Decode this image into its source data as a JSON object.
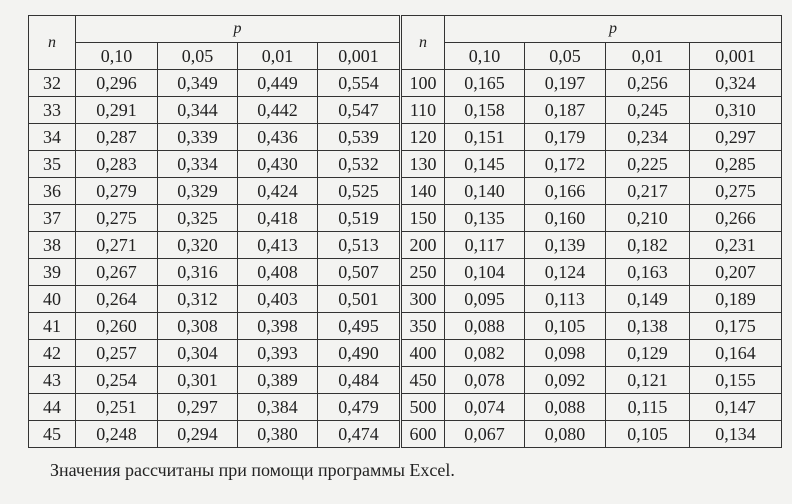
{
  "blocks": [
    {
      "n_label": "n",
      "p_label": "p",
      "p_values": [
        "0,10",
        "0,05",
        "0,01",
        "0,001"
      ],
      "rows": [
        [
          "32",
          "0,296",
          "0,349",
          "0,449",
          "0,554"
        ],
        [
          "33",
          "0,291",
          "0,344",
          "0,442",
          "0,547"
        ],
        [
          "34",
          "0,287",
          "0,339",
          "0,436",
          "0,539"
        ],
        [
          "35",
          "0,283",
          "0,334",
          "0,430",
          "0,532"
        ],
        [
          "36",
          "0,279",
          "0,329",
          "0,424",
          "0,525"
        ],
        [
          "37",
          "0,275",
          "0,325",
          "0,418",
          "0,519"
        ],
        [
          "38",
          "0,271",
          "0,320",
          "0,413",
          "0,513"
        ],
        [
          "39",
          "0,267",
          "0,316",
          "0,408",
          "0,507"
        ],
        [
          "40",
          "0,264",
          "0,312",
          "0,403",
          "0,501"
        ],
        [
          "41",
          "0,260",
          "0,308",
          "0,398",
          "0,495"
        ],
        [
          "42",
          "0,257",
          "0,304",
          "0,393",
          "0,490"
        ],
        [
          "43",
          "0,254",
          "0,301",
          "0,389",
          "0,484"
        ],
        [
          "44",
          "0,251",
          "0,297",
          "0,384",
          "0,479"
        ],
        [
          "45",
          "0,248",
          "0,294",
          "0,380",
          "0,474"
        ]
      ]
    },
    {
      "n_label": "n",
      "p_label": "p",
      "p_values": [
        "0,10",
        "0,05",
        "0,01",
        "0,001"
      ],
      "rows": [
        [
          "100",
          "0,165",
          "0,197",
          "0,256",
          "0,324"
        ],
        [
          "110",
          "0,158",
          "0,187",
          "0,245",
          "0,310"
        ],
        [
          "120",
          "0,151",
          "0,179",
          "0,234",
          "0,297"
        ],
        [
          "130",
          "0,145",
          "0,172",
          "0,225",
          "0,285"
        ],
        [
          "140",
          "0,140",
          "0,166",
          "0,217",
          "0,275"
        ],
        [
          "150",
          "0,135",
          "0,160",
          "0,210",
          "0,266"
        ],
        [
          "200",
          "0,117",
          "0,139",
          "0,182",
          "0,231"
        ],
        [
          "250",
          "0,104",
          "0,124",
          "0,163",
          "0,207"
        ],
        [
          "300",
          "0,095",
          "0,113",
          "0,149",
          "0,189"
        ],
        [
          "350",
          "0,088",
          "0,105",
          "0,138",
          "0,175"
        ],
        [
          "400",
          "0,082",
          "0,098",
          "0,129",
          "0,164"
        ],
        [
          "450",
          "0,078",
          "0,092",
          "0,121",
          "0,155"
        ],
        [
          "500",
          "0,074",
          "0,088",
          "0,115",
          "0,147"
        ],
        [
          "600",
          "0,067",
          "0,080",
          "0,105",
          "0,134"
        ]
      ]
    }
  ],
  "note": "Значения рассчитаны при помощи программы Excel."
}
